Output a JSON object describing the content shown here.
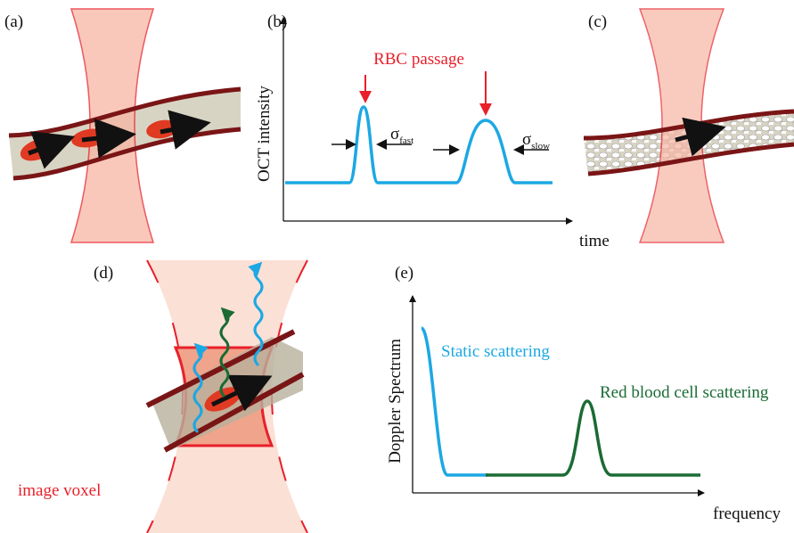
{
  "panels": {
    "a": {
      "label": "(a)"
    },
    "b": {
      "label": "(b)",
      "y_label": "OCT intensity",
      "x_label": "time",
      "annotation": "RBC passage",
      "sigma_fast": {
        "symbol": "σ",
        "subscript": "fast"
      },
      "sigma_slow": {
        "symbol": "σ",
        "subscript": "slow"
      }
    },
    "c": {
      "label": "(c)"
    },
    "d": {
      "label": "(d)",
      "annotation": "image voxel"
    },
    "e": {
      "label": "(e)",
      "y_label": "Doppler Spectrum",
      "x_label": "frequency",
      "static_label": "Static scattering",
      "rbc_label": "Red blood cell scattering"
    }
  }
}
